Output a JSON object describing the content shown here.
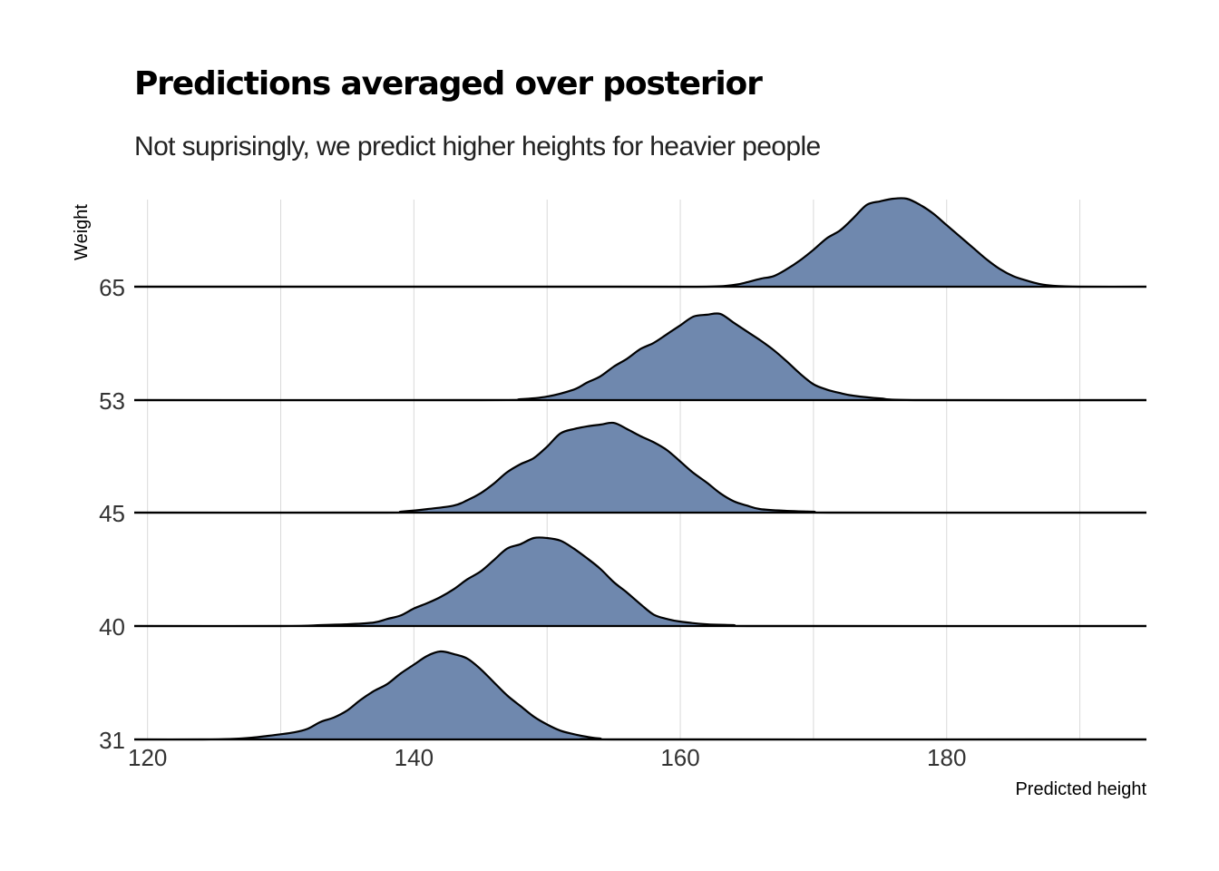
{
  "chart_data": {
    "type": "area",
    "subtype": "ridgeline",
    "title": "Predictions averaged over posterior",
    "subtitle": "Not suprisingly, we predict higher heights for heavier people",
    "xlabel": "Predicted height",
    "ylabel": "Weight",
    "xlim": [
      119,
      195
    ],
    "x_ticks": [
      120,
      140,
      160,
      180
    ],
    "grid": true,
    "fill_color": "#6F88AE",
    "line_color": "#000000",
    "grid_color": "#D9D9D9",
    "categories": [
      "31",
      "40",
      "45",
      "53",
      "65"
    ],
    "series": [
      {
        "label": "31",
        "points": [
          [
            119,
            0
          ],
          [
            124,
            0
          ],
          [
            127,
            0.01
          ],
          [
            129,
            0.04
          ],
          [
            131,
            0.08
          ],
          [
            132,
            0.12
          ],
          [
            133,
            0.2
          ],
          [
            134,
            0.25
          ],
          [
            135,
            0.33
          ],
          [
            136,
            0.45
          ],
          [
            137,
            0.55
          ],
          [
            138,
            0.63
          ],
          [
            139,
            0.75
          ],
          [
            140,
            0.85
          ],
          [
            141,
            0.95
          ],
          [
            142,
            1.0
          ],
          [
            143,
            0.97
          ],
          [
            144,
            0.92
          ],
          [
            145,
            0.8
          ],
          [
            146,
            0.65
          ],
          [
            147,
            0.5
          ],
          [
            148,
            0.38
          ],
          [
            149,
            0.26
          ],
          [
            150,
            0.17
          ],
          [
            151,
            0.1
          ],
          [
            152,
            0.06
          ],
          [
            153,
            0.03
          ],
          [
            154,
            0.01
          ],
          [
            156,
            0
          ],
          [
            195,
            0
          ]
        ]
      },
      {
        "label": "40",
        "points": [
          [
            119,
            0
          ],
          [
            130,
            0
          ],
          [
            133,
            0.01
          ],
          [
            135,
            0.02
          ],
          [
            137,
            0.04
          ],
          [
            138,
            0.08
          ],
          [
            139,
            0.12
          ],
          [
            140,
            0.2
          ],
          [
            141,
            0.26
          ],
          [
            142,
            0.33
          ],
          [
            143,
            0.42
          ],
          [
            144,
            0.53
          ],
          [
            145,
            0.62
          ],
          [
            146,
            0.75
          ],
          [
            147,
            0.88
          ],
          [
            148,
            0.93
          ],
          [
            149,
            1.0
          ],
          [
            150,
            1.0
          ],
          [
            151,
            0.97
          ],
          [
            152,
            0.88
          ],
          [
            153,
            0.77
          ],
          [
            154,
            0.65
          ],
          [
            155,
            0.5
          ],
          [
            156,
            0.38
          ],
          [
            157,
            0.25
          ],
          [
            158,
            0.13
          ],
          [
            159,
            0.08
          ],
          [
            160,
            0.05
          ],
          [
            162,
            0.02
          ],
          [
            164,
            0.01
          ],
          [
            166,
            0
          ],
          [
            195,
            0
          ]
        ]
      },
      {
        "label": "45",
        "points": [
          [
            119,
            0
          ],
          [
            138,
            0
          ],
          [
            139,
            0.01
          ],
          [
            141,
            0.04
          ],
          [
            143,
            0.08
          ],
          [
            144,
            0.14
          ],
          [
            145,
            0.22
          ],
          [
            146,
            0.33
          ],
          [
            147,
            0.46
          ],
          [
            148,
            0.55
          ],
          [
            149,
            0.62
          ],
          [
            150,
            0.75
          ],
          [
            151,
            0.9
          ],
          [
            152,
            0.95
          ],
          [
            153,
            0.98
          ],
          [
            154,
            1.0
          ],
          [
            155,
            1.02
          ],
          [
            156,
            0.95
          ],
          [
            157,
            0.87
          ],
          [
            158,
            0.8
          ],
          [
            159,
            0.71
          ],
          [
            160,
            0.58
          ],
          [
            161,
            0.45
          ],
          [
            162,
            0.34
          ],
          [
            163,
            0.22
          ],
          [
            164,
            0.13
          ],
          [
            165,
            0.08
          ],
          [
            166,
            0.04
          ],
          [
            168,
            0.02
          ],
          [
            170,
            0.01
          ],
          [
            172,
            0
          ],
          [
            195,
            0
          ]
        ]
      },
      {
        "label": "53",
        "points": [
          [
            119,
            0
          ],
          [
            145,
            0
          ],
          [
            148,
            0.01
          ],
          [
            150,
            0.04
          ],
          [
            152,
            0.12
          ],
          [
            153,
            0.2
          ],
          [
            154,
            0.27
          ],
          [
            155,
            0.38
          ],
          [
            156,
            0.47
          ],
          [
            157,
            0.58
          ],
          [
            158,
            0.65
          ],
          [
            159,
            0.75
          ],
          [
            160,
            0.85
          ],
          [
            161,
            0.95
          ],
          [
            162,
            0.97
          ],
          [
            163,
            0.98
          ],
          [
            164,
            0.88
          ],
          [
            165,
            0.78
          ],
          [
            166,
            0.68
          ],
          [
            167,
            0.57
          ],
          [
            168,
            0.44
          ],
          [
            169,
            0.3
          ],
          [
            170,
            0.18
          ],
          [
            171,
            0.12
          ],
          [
            172,
            0.08
          ],
          [
            173,
            0.05
          ],
          [
            175,
            0.02
          ],
          [
            178,
            0
          ],
          [
            195,
            0
          ]
        ]
      },
      {
        "label": "65",
        "points": [
          [
            119,
            0
          ],
          [
            155,
            0
          ],
          [
            162,
            0
          ],
          [
            164,
            0.02
          ],
          [
            165,
            0.05
          ],
          [
            166,
            0.09
          ],
          [
            167,
            0.12
          ],
          [
            168,
            0.2
          ],
          [
            169,
            0.3
          ],
          [
            170,
            0.42
          ],
          [
            171,
            0.55
          ],
          [
            172,
            0.64
          ],
          [
            173,
            0.78
          ],
          [
            174,
            0.93
          ],
          [
            175,
            0.97
          ],
          [
            176,
            1.0
          ],
          [
            177,
            1.0
          ],
          [
            178,
            0.93
          ],
          [
            179,
            0.83
          ],
          [
            180,
            0.7
          ],
          [
            181,
            0.57
          ],
          [
            182,
            0.44
          ],
          [
            183,
            0.31
          ],
          [
            184,
            0.2
          ],
          [
            185,
            0.12
          ],
          [
            186,
            0.07
          ],
          [
            187,
            0.03
          ],
          [
            188,
            0.01
          ],
          [
            190,
            0
          ],
          [
            195,
            0
          ]
        ]
      }
    ]
  }
}
